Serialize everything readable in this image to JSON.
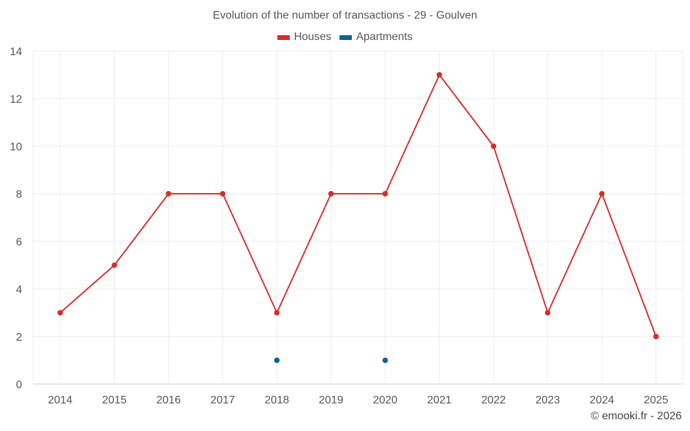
{
  "chart_data": {
    "type": "line",
    "title": "Evolution of the number of transactions - 29 - Goulven",
    "xlabel": "",
    "ylabel": "",
    "categories": [
      "2014",
      "2015",
      "2016",
      "2017",
      "2018",
      "2019",
      "2020",
      "2021",
      "2022",
      "2023",
      "2024",
      "2025"
    ],
    "ylim": [
      0,
      14
    ],
    "yticks": [
      0,
      2,
      4,
      6,
      8,
      10,
      12,
      14
    ],
    "grid": true,
    "legend_position": "top-center",
    "series": [
      {
        "name": "Houses",
        "color": "#d32f2f",
        "values": [
          3,
          5,
          8,
          8,
          3,
          8,
          8,
          13,
          10,
          3,
          8,
          2
        ]
      },
      {
        "name": "Apartments",
        "color": "#0f6494",
        "values": [
          null,
          null,
          null,
          null,
          1,
          null,
          1,
          null,
          null,
          null,
          null,
          null
        ]
      }
    ]
  },
  "footer": {
    "credit": "© emooki.fr - 2026"
  }
}
